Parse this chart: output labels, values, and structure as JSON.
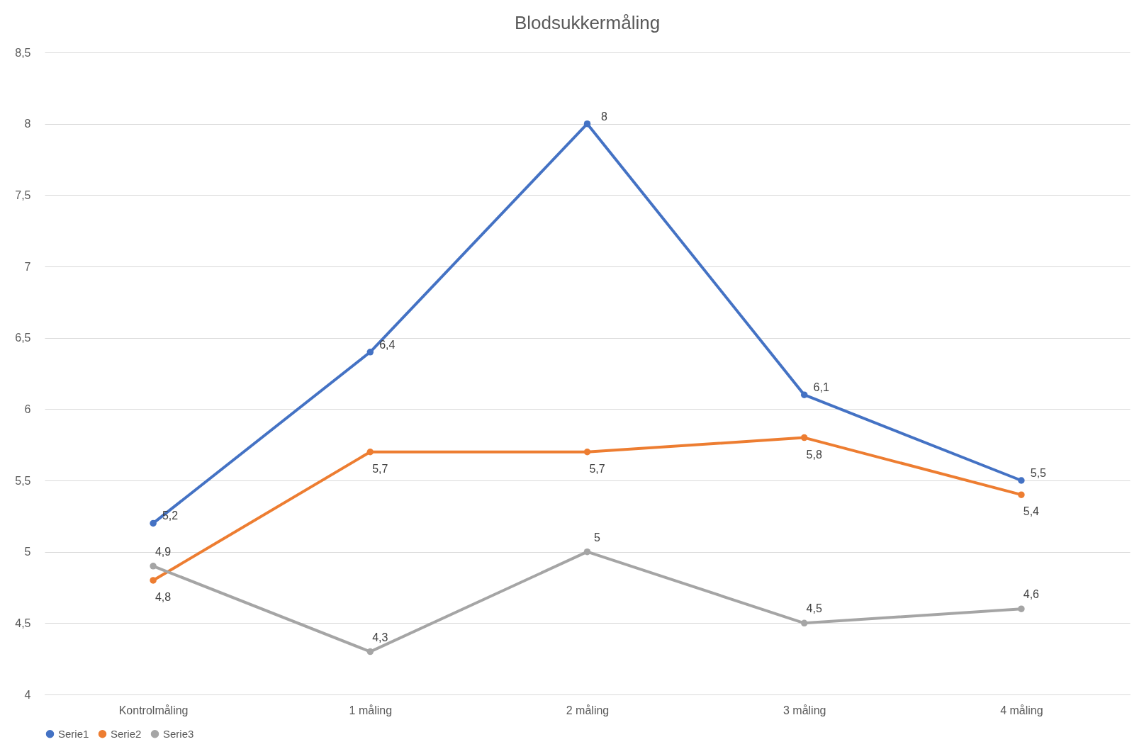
{
  "chart_data": {
    "type": "line",
    "title": "Blodsukkermåling",
    "categories": [
      "Kontrolmåling",
      "1 måling",
      "2 måling",
      "3 måling",
      "4 måling"
    ],
    "series": [
      {
        "name": "Serie1",
        "color": "#4472c4",
        "values": [
          5.2,
          6.4,
          8,
          6.1,
          5.5
        ],
        "value_labels": [
          "5,2",
          "6,4",
          "8",
          "6,1",
          "5,5"
        ]
      },
      {
        "name": "Serie2",
        "color": "#ed7d31",
        "values": [
          4.8,
          5.7,
          5.7,
          5.8,
          5.4
        ],
        "value_labels": [
          "4,8",
          "5,7",
          "5,7",
          "5,8",
          "5,4"
        ]
      },
      {
        "name": "Serie3",
        "color": "#a5a5a5",
        "values": [
          4.9,
          4.3,
          5,
          4.5,
          4.6
        ],
        "value_labels": [
          "4,9",
          "4,3",
          "5",
          "4,5",
          "4,6"
        ]
      }
    ],
    "ylim": [
      4,
      8.5
    ],
    "yticks": [
      4,
      {
        "value": 4.5,
        "label": "4,5"
      },
      5,
      {
        "value": 5.5,
        "label": "5,5"
      },
      6,
      {
        "value": 6.5,
        "label": "6,5"
      },
      7,
      {
        "value": 7.5,
        "label": "7,5"
      },
      8,
      {
        "value": 8.5,
        "label": "8,5"
      }
    ],
    "grid": "y",
    "legend": "bottom",
    "marker": "circle",
    "line_style": "solid"
  }
}
